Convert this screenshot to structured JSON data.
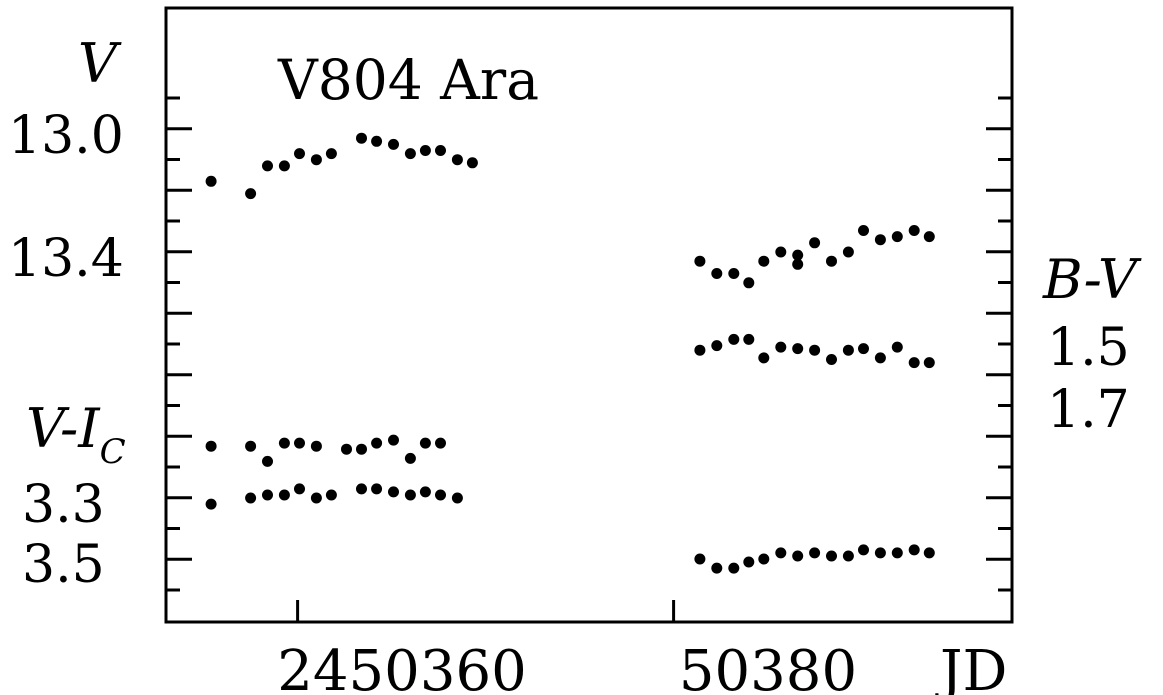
{
  "chart_data": {
    "type": "scatter",
    "title": "V804 Ara",
    "xlabel": "JD",
    "x_ticks": [
      "2450360",
      "50380"
    ],
    "x_tick_values": [
      2450360,
      2450380
    ],
    "xlim": [
      2450353,
      2450398
    ],
    "left_axis": {
      "labels": {
        "V": "V",
        "VI_main": "V-I",
        "VI_sub": "C"
      },
      "V_ticks": [
        "13.0",
        "13.4"
      ],
      "VI_ticks": [
        "3.3",
        "3.5"
      ]
    },
    "right_axis": {
      "label": "B-V",
      "ticks": [
        "1.5",
        "1.7"
      ]
    },
    "series": [
      {
        "name": "V",
        "points": [
          [
            2450355.4,
            13.17
          ],
          [
            2450357.5,
            13.21
          ],
          [
            2450358.4,
            13.12
          ],
          [
            2450359.3,
            13.12
          ],
          [
            2450360.1,
            13.08
          ],
          [
            2450361.0,
            13.1
          ],
          [
            2450361.8,
            13.08
          ],
          [
            2450363.4,
            13.03
          ],
          [
            2450364.2,
            13.04
          ],
          [
            2450365.1,
            13.05
          ],
          [
            2450366.0,
            13.08
          ],
          [
            2450366.8,
            13.07
          ],
          [
            2450367.6,
            13.07
          ],
          [
            2450368.5,
            13.1
          ],
          [
            2450369.3,
            13.11
          ],
          [
            2450381.4,
            13.43
          ],
          [
            2450382.3,
            13.47
          ],
          [
            2450383.2,
            13.47
          ],
          [
            2450384.0,
            13.5
          ],
          [
            2450384.8,
            13.43
          ],
          [
            2450385.7,
            13.4
          ],
          [
            2450386.6,
            13.41
          ],
          [
            2450386.6,
            13.44
          ],
          [
            2450387.5,
            13.37
          ],
          [
            2450388.4,
            13.43
          ],
          [
            2450389.3,
            13.4
          ],
          [
            2450390.1,
            13.33
          ],
          [
            2450391.0,
            13.36
          ],
          [
            2450391.9,
            13.35
          ],
          [
            2450392.8,
            13.33
          ],
          [
            2450393.6,
            13.35
          ]
        ]
      },
      {
        "name": "B-V",
        "points": [
          [
            2450381.4,
            1.54
          ],
          [
            2450382.3,
            1.51
          ],
          [
            2450383.2,
            1.47
          ],
          [
            2450384.0,
            1.47
          ],
          [
            2450384.8,
            1.59
          ],
          [
            2450385.7,
            1.52
          ],
          [
            2450386.6,
            1.53
          ],
          [
            2450387.5,
            1.54
          ],
          [
            2450388.4,
            1.6
          ],
          [
            2450389.3,
            1.54
          ],
          [
            2450390.1,
            1.53
          ],
          [
            2450391.0,
            1.59
          ],
          [
            2450391.9,
            1.52
          ],
          [
            2450392.8,
            1.62
          ],
          [
            2450393.6,
            1.62
          ]
        ]
      },
      {
        "name": "V-I_C",
        "points": [
          [
            2450355.4,
            3.13
          ],
          [
            2450357.5,
            3.13
          ],
          [
            2450358.4,
            3.18
          ],
          [
            2450359.3,
            3.12
          ],
          [
            2450360.1,
            3.12
          ],
          [
            2450361.0,
            3.13
          ],
          [
            2450362.6,
            3.14
          ],
          [
            2450363.4,
            3.14
          ],
          [
            2450364.2,
            3.12
          ],
          [
            2450365.1,
            3.11
          ],
          [
            2450366.0,
            3.17
          ],
          [
            2450366.8,
            3.12
          ],
          [
            2450367.6,
            3.12
          ],
          [
            2450355.4,
            3.32
          ],
          [
            2450357.5,
            3.3
          ],
          [
            2450358.4,
            3.29
          ],
          [
            2450359.3,
            3.29
          ],
          [
            2450360.1,
            3.27
          ],
          [
            2450361.0,
            3.3
          ],
          [
            2450361.8,
            3.29
          ],
          [
            2450363.4,
            3.27
          ],
          [
            2450364.2,
            3.27
          ],
          [
            2450365.1,
            3.28
          ],
          [
            2450366.0,
            3.29
          ],
          [
            2450366.8,
            3.28
          ],
          [
            2450367.6,
            3.29
          ],
          [
            2450368.5,
            3.3
          ],
          [
            2450381.4,
            3.5
          ],
          [
            2450382.3,
            3.53
          ],
          [
            2450383.2,
            3.53
          ],
          [
            2450384.0,
            3.51
          ],
          [
            2450384.8,
            3.5
          ],
          [
            2450385.7,
            3.48
          ],
          [
            2450386.6,
            3.49
          ],
          [
            2450387.5,
            3.48
          ],
          [
            2450388.4,
            3.49
          ],
          [
            2450389.3,
            3.49
          ],
          [
            2450390.1,
            3.47
          ],
          [
            2450391.0,
            3.48
          ],
          [
            2450391.9,
            3.48
          ],
          [
            2450392.8,
            3.47
          ],
          [
            2450393.6,
            3.48
          ]
        ]
      }
    ],
    "grid": false,
    "legend": "none"
  }
}
